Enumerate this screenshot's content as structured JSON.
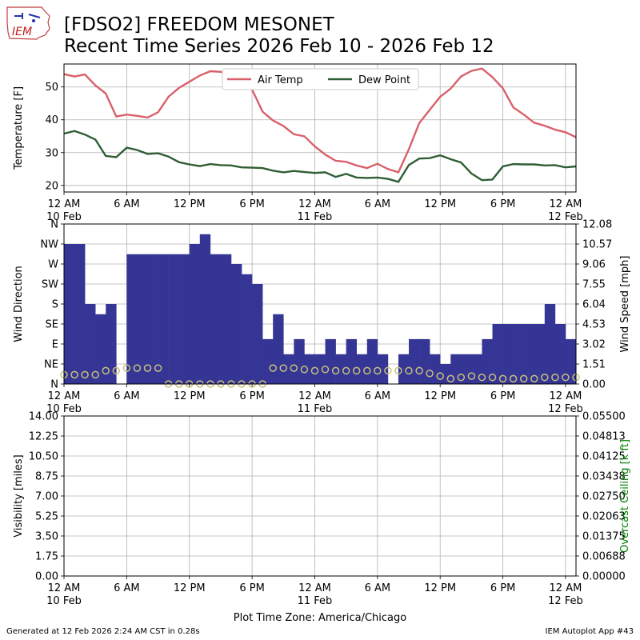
{
  "header": {
    "title_line1": "[FDSO2] FREEDOM MESONET",
    "title_line2": "Recent Time Series 2026 Feb 10 - 2026 Feb 12",
    "logo_text": "IEM"
  },
  "footer": {
    "generated": "Generated at 12 Feb 2026 2:24 AM CST in 0.28s",
    "app": "IEM Autoplot App #43"
  },
  "colors": {
    "air_temp": "#d9606a",
    "dew_point": "#2f5e34",
    "wind_dir_bar": "#353595",
    "wind_speed_marker": "#c8c07a",
    "ceiling_label": "#008000",
    "grid": "#b0b0b0"
  },
  "chart_data": [
    {
      "type": "line",
      "ylabel": "Temperature [F]",
      "ylim": [
        18,
        57
      ],
      "yticks": [
        "20",
        "30",
        "40",
        "50"
      ],
      "ytick_values": [
        20,
        30,
        40,
        50
      ],
      "xlim": [
        0,
        49
      ],
      "xticks": [
        {
          "value": 0,
          "line1": "12 AM",
          "line2": "10 Feb"
        },
        {
          "value": 6,
          "line1": "6 AM",
          "line2": ""
        },
        {
          "value": 12,
          "line1": "12 PM",
          "line2": ""
        },
        {
          "value": 18,
          "line1": "6 PM",
          "line2": ""
        },
        {
          "value": 24,
          "line1": "12 AM",
          "line2": "11 Feb"
        },
        {
          "value": 30,
          "line1": "6 AM",
          "line2": ""
        },
        {
          "value": 36,
          "line1": "12 PM",
          "line2": ""
        },
        {
          "value": 42,
          "line1": "6 PM",
          "line2": ""
        },
        {
          "value": 48,
          "line1": "12 AM",
          "line2": "12 Feb"
        }
      ],
      "grid": true,
      "legend": "upper-center",
      "series": [
        {
          "name": "Air Temp",
          "x": [
            0,
            1,
            2,
            3,
            4,
            5,
            6,
            7,
            8,
            9,
            10,
            11,
            12,
            13,
            14,
            15,
            16,
            17,
            18,
            19,
            20,
            21,
            22,
            23,
            24,
            25,
            26,
            27,
            28,
            29,
            30,
            31,
            32,
            33,
            34,
            35,
            36,
            37,
            38,
            39,
            40,
            41,
            42,
            43,
            44,
            45,
            46,
            47,
            48,
            49
          ],
          "values": [
            53.9,
            53.2,
            53.8,
            50.5,
            48.0,
            41.0,
            41.6,
            41.2,
            40.7,
            42.3,
            47.0,
            49.7,
            51.6,
            53.5,
            54.8,
            54.6,
            53.9,
            53.4,
            49.2,
            42.5,
            39.8,
            38.1,
            35.6,
            35.0,
            31.9,
            29.4,
            27.5,
            27.2,
            26.1,
            25.3,
            26.6,
            25.0,
            24.0,
            31.0,
            39.0,
            43.0,
            47.0,
            49.5,
            53.2,
            54.9,
            55.6,
            53.0,
            49.6,
            43.8,
            41.6,
            39.1,
            38.2,
            37.0,
            36.2,
            34.7
          ]
        },
        {
          "name": "Dew Point",
          "x": [
            0,
            1,
            2,
            3,
            4,
            5,
            6,
            7,
            8,
            9,
            10,
            11,
            12,
            13,
            14,
            15,
            16,
            17,
            18,
            19,
            20,
            21,
            22,
            23,
            24,
            25,
            26,
            27,
            28,
            29,
            30,
            31,
            32,
            33,
            34,
            35,
            36,
            37,
            38,
            39,
            40,
            41,
            42,
            43,
            44,
            45,
            46,
            47,
            48,
            49
          ],
          "values": [
            35.8,
            36.6,
            35.5,
            34.0,
            29.0,
            28.6,
            31.5,
            30.8,
            29.6,
            29.8,
            28.8,
            27.1,
            26.4,
            25.9,
            26.5,
            26.2,
            26.1,
            25.5,
            25.4,
            25.3,
            24.5,
            24.0,
            24.4,
            24.1,
            23.8,
            24.0,
            22.6,
            23.5,
            22.4,
            22.3,
            22.4,
            22.0,
            21.1,
            26.2,
            28.2,
            28.3,
            29.2,
            28.0,
            27.0,
            23.6,
            21.6,
            21.8,
            25.8,
            26.5,
            26.4,
            26.4,
            26.1,
            26.2,
            25.5,
            25.8
          ]
        }
      ]
    },
    {
      "type": "bar",
      "ylabel": "Wind Direction",
      "ylabel_right": "Wind Speed [mph]",
      "ylim": [
        0,
        360
      ],
      "yticks": [
        "N",
        "NE",
        "E",
        "SE",
        "S",
        "SW",
        "W",
        "NW",
        "N"
      ],
      "ytick_values": [
        0,
        45,
        90,
        135,
        180,
        225,
        270,
        315,
        360
      ],
      "ylim_right": [
        0,
        12.08
      ],
      "yticks_right": [
        "0.00",
        "1.51",
        "3.02",
        "4.53",
        "6.04",
        "7.55",
        "9.06",
        "10.57",
        "12.08"
      ],
      "ytick_values_right": [
        0,
        1.51,
        3.02,
        4.53,
        6.04,
        7.55,
        9.06,
        10.57,
        12.08
      ],
      "xlim": [
        0,
        49
      ],
      "grid": true,
      "wind_direction": {
        "x": [
          0.5,
          1.5,
          2.5,
          3.5,
          4.5,
          5.5,
          6.5,
          7.5,
          8.5,
          9.5,
          10.5,
          11.5,
          12.5,
          13.5,
          14.5,
          15.5,
          16.5,
          17.5,
          18.5,
          19.5,
          20.5,
          21.5,
          22.5,
          23.5,
          24.5,
          25.5,
          26.5,
          27.5,
          28.5,
          29.5,
          30.5,
          31.5,
          32.5,
          33.5,
          34.5,
          35.5,
          36.5,
          37.5,
          38.5,
          39.5,
          40.5,
          41.5,
          42.5,
          43.5,
          44.5,
          45.5,
          46.5,
          47.5,
          48.5
        ],
        "values": [
          315,
          315,
          180,
          157,
          180,
          0,
          292,
          292,
          292,
          292,
          292,
          292,
          315,
          337,
          292,
          292,
          270,
          247,
          225,
          101,
          157,
          67,
          101,
          67,
          67,
          101,
          67,
          101,
          67,
          101,
          67,
          0,
          67,
          101,
          101,
          67,
          45,
          67,
          67,
          67,
          101,
          135,
          135,
          135,
          135,
          135,
          180,
          135,
          101
        ]
      },
      "wind_speed": {
        "x": [
          0,
          1,
          2,
          3,
          4,
          5,
          6,
          7,
          8,
          9,
          10,
          11,
          12,
          13,
          14,
          15,
          16,
          17,
          18,
          19,
          20,
          21,
          22,
          23,
          24,
          25,
          26,
          27,
          28,
          29,
          30,
          31,
          32,
          33,
          34,
          35,
          36,
          37,
          38,
          39,
          40,
          41,
          42,
          43,
          44,
          45,
          46,
          47,
          48,
          49
        ],
        "values": [
          0.7,
          0.7,
          0.7,
          0.7,
          1.0,
          1.0,
          1.2,
          1.2,
          1.2,
          1.2,
          0,
          0,
          0,
          0,
          0,
          0,
          0,
          0,
          0,
          0,
          1.2,
          1.2,
          1.2,
          1.1,
          1.0,
          1.1,
          1.0,
          1.0,
          1.0,
          1.0,
          1.0,
          1.0,
          1.0,
          1.0,
          1.0,
          0.8,
          0.6,
          0.4,
          0.5,
          0.6,
          0.5,
          0.5,
          0.4,
          0.4,
          0.4,
          0.4,
          0.5,
          0.5,
          0.5,
          0.5
        ]
      }
    },
    {
      "type": "line",
      "ylabel": "Visibility [miles]",
      "ylabel_right": "Overcast Ceiling [k ft]",
      "ylim": [
        0,
        14
      ],
      "yticks": [
        "0.00",
        "1.75",
        "3.50",
        "5.25",
        "7.00",
        "8.75",
        "10.50",
        "12.25",
        "14.00"
      ],
      "ytick_values": [
        0,
        1.75,
        3.5,
        5.25,
        7.0,
        8.75,
        10.5,
        12.25,
        14.0
      ],
      "ylim_right": [
        0,
        0.055
      ],
      "yticks_right": [
        "0.00000",
        "0.00688",
        "0.01375",
        "0.02063",
        "0.02750",
        "0.03438",
        "0.04125",
        "0.04813",
        "0.05500"
      ],
      "ytick_values_right": [
        0,
        0.00688,
        0.01375,
        0.02063,
        0.0275,
        0.03438,
        0.04125,
        0.04813,
        0.055
      ],
      "xlim": [
        0,
        49
      ],
      "xlabel": "Plot Time Zone: America/Chicago",
      "grid": true,
      "series": []
    }
  ]
}
